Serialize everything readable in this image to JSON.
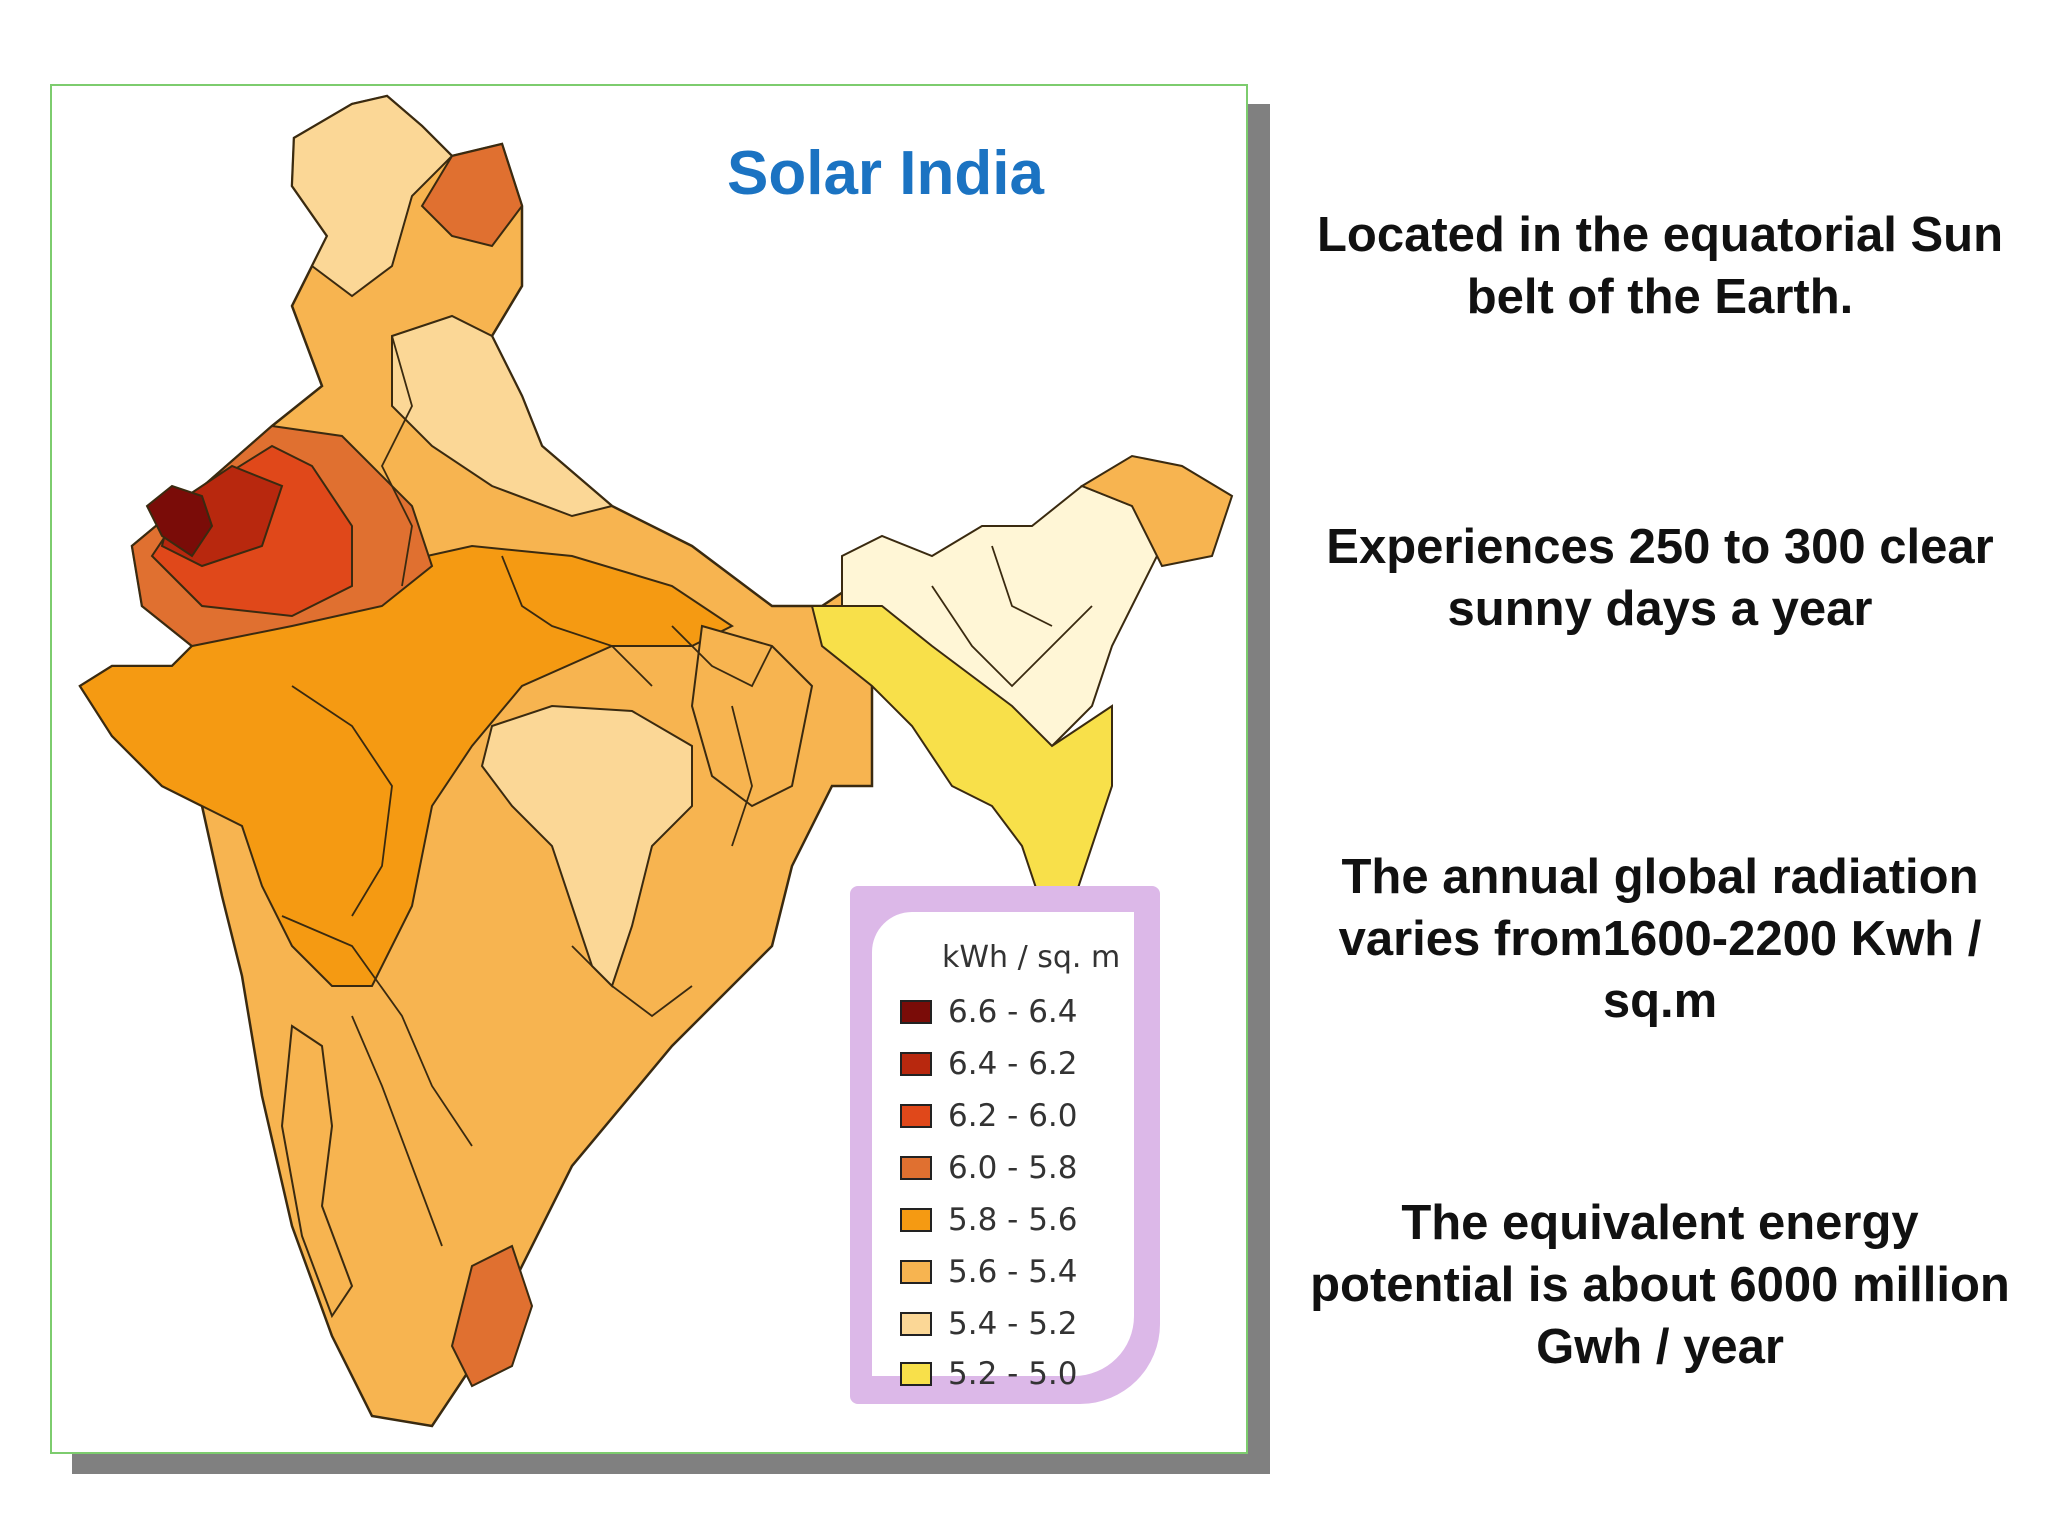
{
  "map": {
    "title": "Solar India",
    "legend": {
      "unit": "kWh / sq. m",
      "items": [
        {
          "label": "6.6 - 6.4",
          "color": "#7a0c08"
        },
        {
          "label": "6.4 - 6.2",
          "color": "#b8280e"
        },
        {
          "label": "6.2 - 6.0",
          "color": "#e0481a"
        },
        {
          "label": "6.0 - 5.8",
          "color": "#e07030"
        },
        {
          "label": "5.8 - 5.6",
          "color": "#f59a12"
        },
        {
          "label": "5.6 - 5.4",
          "color": "#f7b450"
        },
        {
          "label": "5.4 - 5.2",
          "color": "#fbd796"
        },
        {
          "label": "5.2 - 5.0",
          "color": "#f8e04a"
        }
      ]
    }
  },
  "facts": [
    {
      "text": "Located in the equatorial Sun belt of the Earth."
    },
    {
      "text": "Experiences 250 to 300 clear sunny days a year"
    },
    {
      "text": "The annual global radiation varies from1600-2200 Kwh / sq.m"
    },
    {
      "text": "The equivalent energy potential is about  6000 million Gwh / year"
    }
  ]
}
